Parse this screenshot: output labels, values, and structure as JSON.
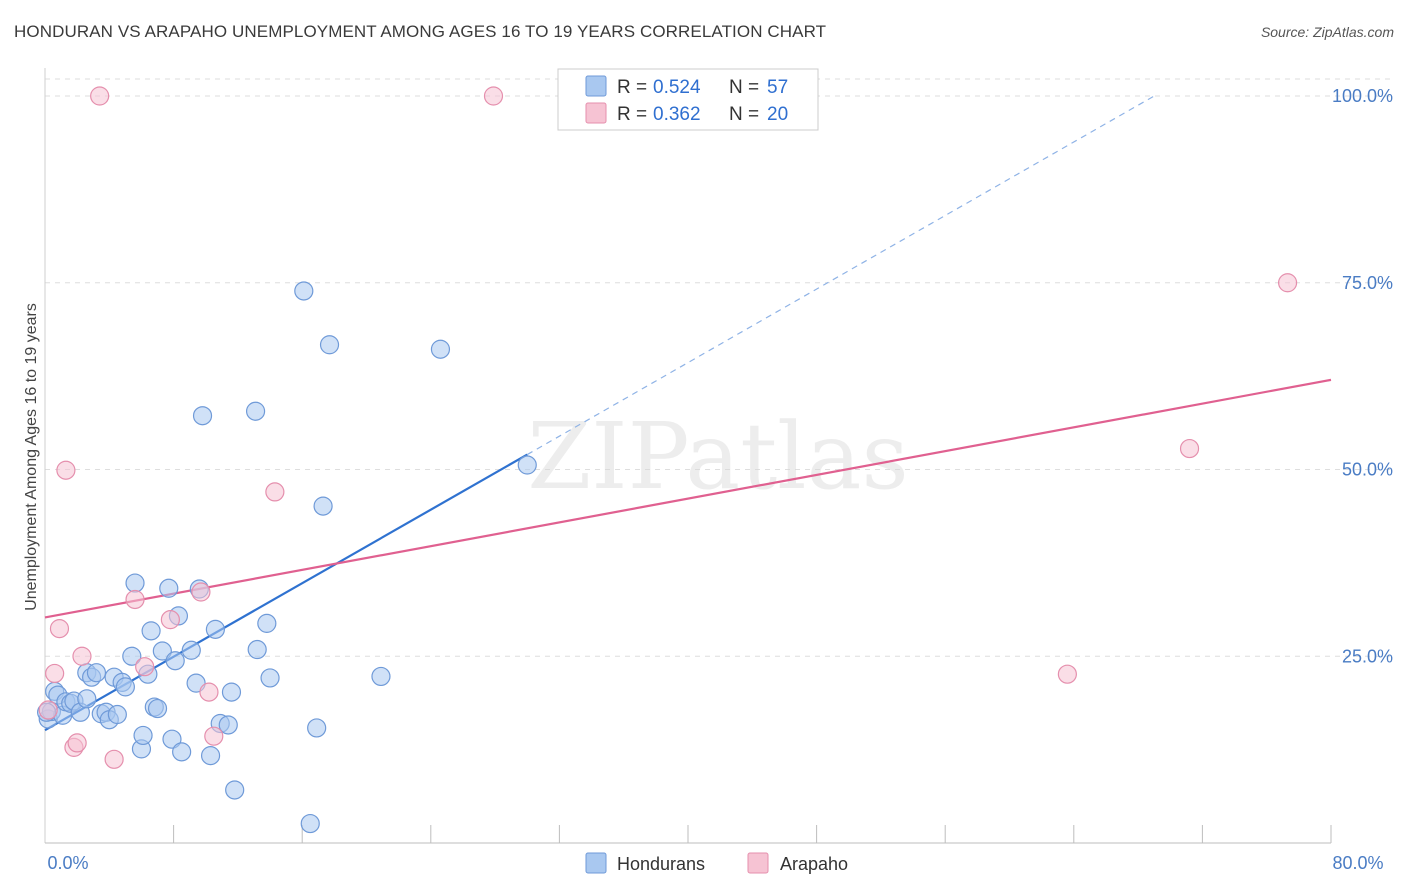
{
  "title": "HONDURAN VS ARAPAHO UNEMPLOYMENT AMONG AGES 16 TO 19 YEARS CORRELATION CHART",
  "source": "Source: ZipAtlas.com",
  "watermark": "ZIPatlas",
  "colors": {
    "hondurans_fill": "#a9c8f0",
    "hondurans_stroke": "#6f9ad8",
    "hondurans_line": "#2f72d0",
    "arapaho_fill": "#f6c3d3",
    "arapaho_stroke": "#e58fad",
    "arapaho_line": "#e06090",
    "axis_text": "#4a7cc4",
    "grid": "#dedede"
  },
  "legend": {
    "r_label": "R =",
    "n_label": "N =",
    "rows": [
      {
        "series": "Hondurans",
        "r": "0.524",
        "n": "57"
      },
      {
        "series": "Arapaho",
        "r": "0.362",
        "n": "20"
      }
    ]
  },
  "chart_data": {
    "type": "scatter",
    "title": "HONDURAN VS ARAPAHO UNEMPLOYMENT AMONG AGES 16 TO 19 YEARS CORRELATION CHART",
    "xlabel": "",
    "ylabel": "Unemployment Among Ages 16 to 19 years",
    "xlim": [
      0,
      80
    ],
    "ylim": [
      0,
      100
    ],
    "x_tick_labels": [
      "0.0%",
      "80.0%"
    ],
    "y_ticks": [
      25,
      50,
      75,
      100
    ],
    "y_tick_labels": [
      "25.0%",
      "50.0%",
      "75.0%",
      "100.0%"
    ],
    "grid": true,
    "series": [
      {
        "name": "Hondurans",
        "r": 0.524,
        "n": 57,
        "points": [
          [
            0.2,
            16.6
          ],
          [
            0.4,
            17.6
          ],
          [
            0.6,
            20.3
          ],
          [
            0.8,
            19.8
          ],
          [
            1.1,
            17.1
          ],
          [
            1.3,
            18.9
          ],
          [
            1.6,
            18.7
          ],
          [
            1.8,
            19.0
          ],
          [
            2.2,
            17.5
          ],
          [
            2.6,
            19.3
          ],
          [
            2.6,
            22.8
          ],
          [
            2.9,
            22.2
          ],
          [
            3.2,
            22.8
          ],
          [
            3.5,
            17.3
          ],
          [
            3.8,
            17.5
          ],
          [
            4.0,
            16.5
          ],
          [
            4.3,
            22.2
          ],
          [
            4.5,
            17.2
          ],
          [
            4.8,
            21.5
          ],
          [
            5.0,
            20.9
          ],
          [
            5.4,
            25.0
          ],
          [
            5.6,
            34.8
          ],
          [
            6.0,
            12.6
          ],
          [
            6.1,
            14.4
          ],
          [
            6.4,
            22.6
          ],
          [
            6.6,
            28.4
          ],
          [
            6.8,
            18.2
          ],
          [
            7.0,
            18.0
          ],
          [
            7.3,
            25.7
          ],
          [
            7.7,
            34.1
          ],
          [
            7.9,
            13.9
          ],
          [
            8.1,
            24.4
          ],
          [
            8.3,
            30.4
          ],
          [
            8.5,
            12.2
          ],
          [
            9.1,
            25.8
          ],
          [
            9.4,
            21.4
          ],
          [
            9.6,
            34.0
          ],
          [
            9.8,
            57.2
          ],
          [
            10.3,
            11.7
          ],
          [
            10.6,
            28.6
          ],
          [
            10.9,
            16.0
          ],
          [
            11.4,
            15.8
          ],
          [
            11.6,
            20.2
          ],
          [
            11.8,
            7.1
          ],
          [
            13.1,
            57.8
          ],
          [
            13.2,
            25.9
          ],
          [
            13.8,
            29.4
          ],
          [
            14.0,
            22.1
          ],
          [
            16.1,
            73.9
          ],
          [
            16.5,
            2.6
          ],
          [
            16.9,
            15.4
          ],
          [
            17.3,
            45.1
          ],
          [
            17.7,
            66.7
          ],
          [
            20.9,
            22.3
          ],
          [
            24.6,
            66.1
          ],
          [
            30.0,
            50.6
          ],
          [
            0.1,
            17.5
          ]
        ],
        "trend": {
          "x": [
            0,
            30.0
          ],
          "y": [
            15.1,
            52.0
          ],
          "style": "solid"
        },
        "trend_extension": {
          "x": [
            30.0,
            69.0
          ],
          "y": [
            52.0,
            100.0
          ],
          "style": "dashed"
        }
      },
      {
        "name": "Arapaho",
        "r": 0.362,
        "n": 20,
        "points": [
          [
            0.2,
            17.8
          ],
          [
            0.6,
            22.7
          ],
          [
            0.9,
            28.7
          ],
          [
            1.3,
            49.9
          ],
          [
            1.8,
            12.8
          ],
          [
            2.0,
            13.4
          ],
          [
            2.3,
            25.0
          ],
          [
            4.3,
            11.2
          ],
          [
            5.6,
            32.6
          ],
          [
            6.2,
            23.6
          ],
          [
            7.8,
            29.9
          ],
          [
            9.7,
            33.6
          ],
          [
            10.2,
            20.2
          ],
          [
            10.5,
            14.3
          ],
          [
            14.3,
            47.0
          ],
          [
            3.4,
            100.0
          ],
          [
            27.9,
            100.0
          ],
          [
            63.6,
            22.6
          ],
          [
            71.2,
            52.8
          ],
          [
            77.3,
            75.0
          ]
        ],
        "trend": {
          "x": [
            0,
            80
          ],
          "y": [
            30.2,
            62.0
          ],
          "style": "solid"
        }
      }
    ]
  }
}
